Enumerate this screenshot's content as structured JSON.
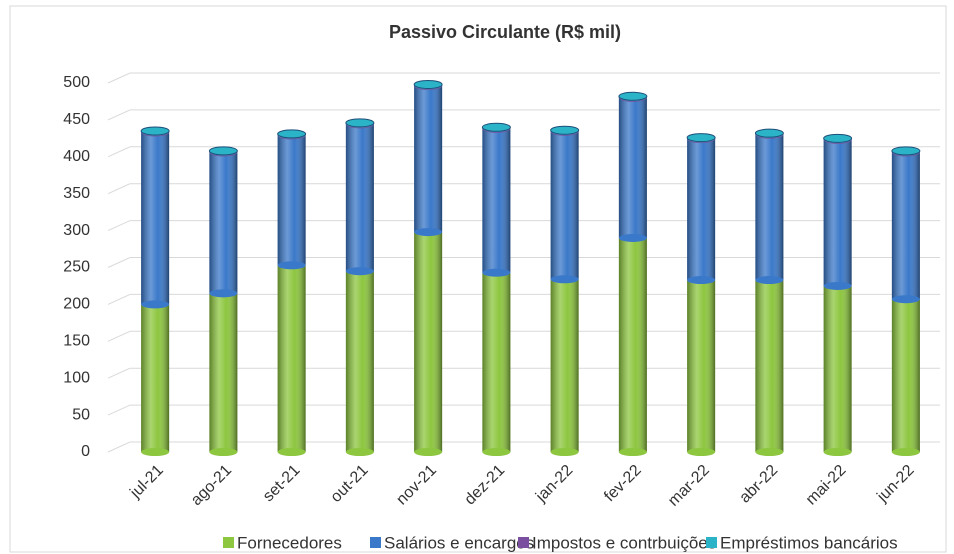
{
  "chart_data": {
    "type": "bar",
    "stacked": true,
    "title": "Passivo Circulante (R$ mil)",
    "categories": [
      "jul-21",
      "ago-21",
      "set-21",
      "out-21",
      "nov-21",
      "dez-21",
      "jan-22",
      "fev-22",
      "mar-22",
      "abr-22",
      "mai-22",
      "jun-22"
    ],
    "series": [
      {
        "name": "Fornecedores",
        "color": "#8dc63f",
        "values": [
          200,
          215,
          253,
          245,
          298,
          243,
          234,
          290,
          233,
          233,
          225,
          207
        ]
      },
      {
        "name": "Salários e encargos",
        "color": "#3a78c9",
        "values": [
          233,
          191,
          176,
          199,
          198,
          195,
          200,
          190,
          191,
          197,
          198,
          199
        ]
      },
      {
        "name": "Impostos e contrbuições",
        "color": "#7a4fa0",
        "values": [
          1,
          1,
          1,
          1,
          1,
          1,
          1,
          1,
          1,
          1,
          1,
          1
        ]
      },
      {
        "name": "Empréstimos bancários",
        "color": "#2bb3c7",
        "values": [
          1,
          1,
          1,
          1,
          1,
          1,
          1,
          1,
          1,
          1,
          1,
          1
        ]
      }
    ],
    "ylim": [
      0,
      500
    ],
    "yticks": [
      0,
      50,
      100,
      150,
      200,
      250,
      300,
      350,
      400,
      450,
      500
    ],
    "grid": true,
    "legend": "bottom"
  }
}
